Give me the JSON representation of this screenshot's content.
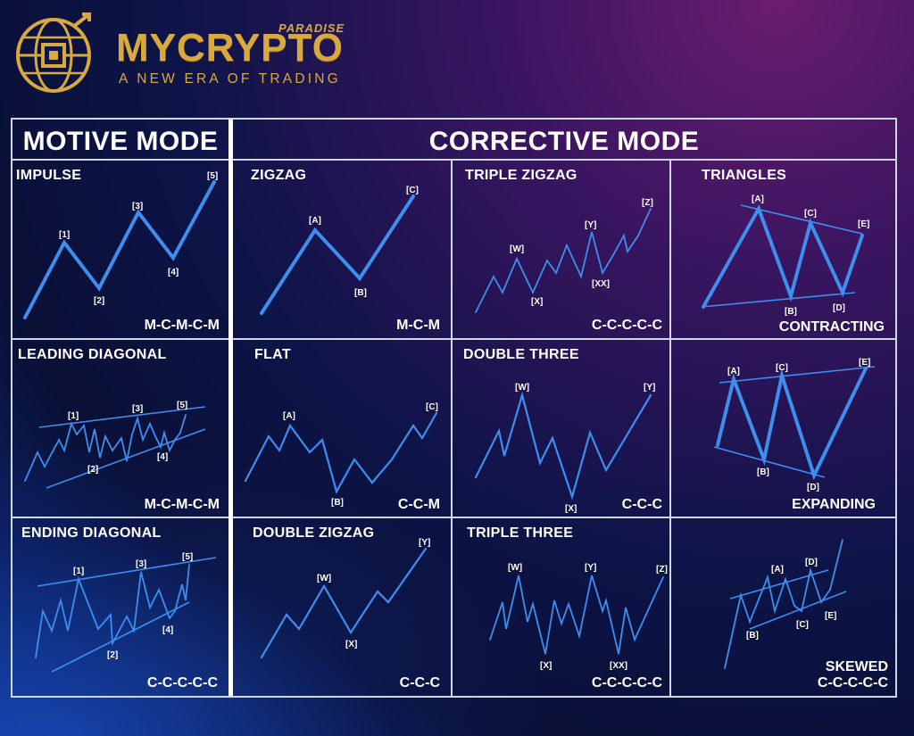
{
  "brand": {
    "name": "MYCRYPTO",
    "super": "PARADISE",
    "tagline": "A NEW ERA OF TRADING"
  },
  "colors": {
    "gold": "#d8a93f",
    "wave": "#3e8ef0",
    "grid": "#cfd6e6"
  },
  "headers": {
    "motive": "MOTIVE MODE",
    "corrective": "CORRECTIVE MODE"
  },
  "cells": {
    "impulse": {
      "title": "IMPULSE",
      "code": "M-C-M-C-M",
      "labels": [
        "[1]",
        "[2]",
        "[3]",
        "[4]",
        "[5]"
      ]
    },
    "zigzag": {
      "title": "ZIGZAG",
      "code": "M-C-M",
      "labels": [
        "[A]",
        "[B]",
        "[C]"
      ]
    },
    "triple_zigzag": {
      "title": "TRIPLE ZIGZAG",
      "code": "C-C-C-C-C",
      "labels": [
        "[W]",
        "[X]",
        "[Y]",
        "[XX]",
        "[Z]"
      ]
    },
    "triangles": {
      "title": "TRIANGLES",
      "code": "CONTRACTING",
      "labels": [
        "[A]",
        "[B]",
        "[C]",
        "[D]",
        "[E]"
      ]
    },
    "leading_diagonal": {
      "title": "LEADING DIAGONAL",
      "code": "M-C-M-C-M",
      "labels": [
        "[1]",
        "[2]",
        "[3]",
        "[4]",
        "[5]"
      ]
    },
    "flat": {
      "title": "FLAT",
      "code": "C-C-M",
      "labels": [
        "[A]",
        "[B]",
        "[C]"
      ]
    },
    "double_three": {
      "title": "DOUBLE THREE",
      "code": "C-C-C",
      "labels": [
        "[W]",
        "[X]",
        "[Y]"
      ]
    },
    "expanding": {
      "title": "",
      "code": "EXPANDING",
      "labels": [
        "[A]",
        "[B]",
        "[C]",
        "[D]",
        "[E]"
      ]
    },
    "ending_diagonal": {
      "title": "ENDING DIAGONAL",
      "code": "C-C-C-C-C",
      "labels": [
        "[1]",
        "[2]",
        "[3]",
        "[4]",
        "[5]"
      ]
    },
    "double_zigzag": {
      "title": "DOUBLE ZIGZAG",
      "code": "C-C-C",
      "labels": [
        "[W]",
        "[X]",
        "[Y]"
      ]
    },
    "triple_three": {
      "title": "TRIPLE THREE",
      "code": "C-C-C-C-C",
      "labels": [
        "[W]",
        "[X]",
        "[Y]",
        "[XX]",
        "[Z]"
      ]
    },
    "skewed": {
      "title": "",
      "code_line1": "SKEWED",
      "code_line2": "C-C-C-C-C",
      "labels": [
        "[A]",
        "[B]",
        "[C]",
        "[D]",
        "[E]"
      ]
    }
  }
}
